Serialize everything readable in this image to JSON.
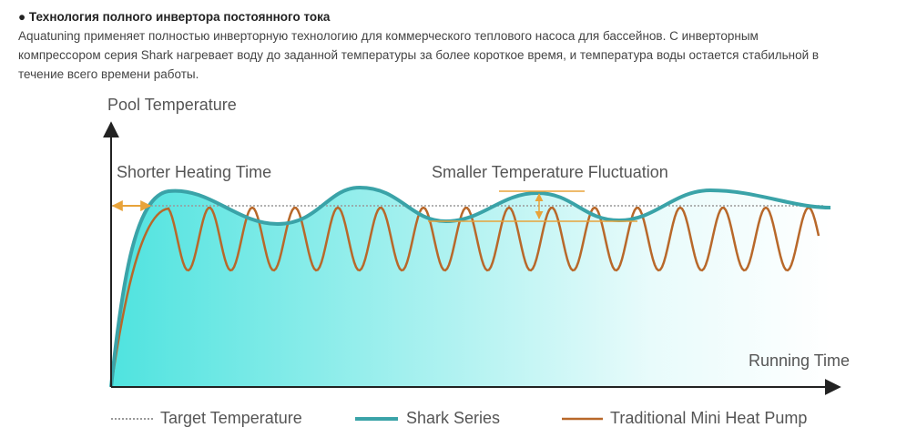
{
  "header": {
    "title": "● Технология полного инвертора постоянного тока",
    "paragraph": [
      "Aquatuning применяет полностью инверторную технологию для коммерческого теплового насоса для бассейнов. С инверторным",
      "компрессором серия Shark нагревает воду до заданной температуры за более короткое время, и температура воды остается стабильной в",
      "течение всего времени работы."
    ]
  },
  "diagram": {
    "y_axis_label": "Pool Temperature",
    "x_axis_label": "Running Time",
    "annotations": [
      "Shorter Heating Time",
      "Smaller Temperature Fluctuation"
    ],
    "legend": [
      "Target Temperature",
      "Shark Series",
      "Traditional Mini Heat Pump"
    ]
  }
}
